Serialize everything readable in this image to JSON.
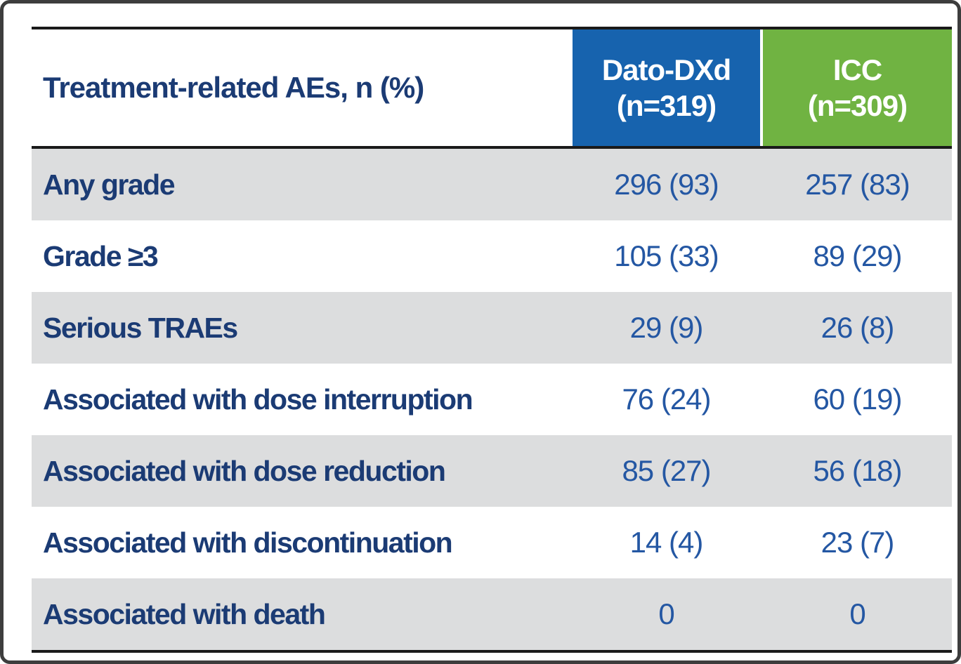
{
  "chart_data": {
    "type": "table",
    "title": "Treatment-related AEs, n (%)",
    "columns": [
      "Treatment-related AEs, n (%)",
      "Dato-DXd (n=319)",
      "ICC (n=309)"
    ],
    "rows": [
      [
        "Any grade",
        "296 (93)",
        "257 (83)"
      ],
      [
        "Grade ≥3",
        "105 (33)",
        "89 (29)"
      ],
      [
        "Serious TRAEs",
        "29 (9)",
        "26 (8)"
      ],
      [
        "Associated with dose interruption",
        "76 (24)",
        "60 (19)"
      ],
      [
        "Associated with dose reduction",
        "85 (27)",
        "56 (18)"
      ],
      [
        "Associated with discontinuation",
        "14 (4)",
        "23 (7)"
      ],
      [
        "Associated with death",
        "0",
        "0"
      ]
    ]
  },
  "table": {
    "header": {
      "row_label": "Treatment-related AEs, n (%)",
      "dato_line1": "Dato-DXd",
      "dato_line2": "(n=319)",
      "icc_line1": "ICC",
      "icc_line2": "(n=309)"
    },
    "rows": [
      {
        "label": "Any grade",
        "dato": "296 (93)",
        "icc": "257 (83)"
      },
      {
        "label": "Grade ≥3",
        "dato": "105 (33)",
        "icc": "89 (29)"
      },
      {
        "label": "Serious TRAEs",
        "dato": "29 (9)",
        "icc": "26 (8)"
      },
      {
        "label": "Associated with dose interruption",
        "dato": "76 (24)",
        "icc": "60 (19)"
      },
      {
        "label": "Associated with dose reduction",
        "dato": "85 (27)",
        "icc": "56 (18)"
      },
      {
        "label": "Associated with discontinuation",
        "dato": "14 (4)",
        "icc": "23 (7)"
      },
      {
        "label": "Associated with death",
        "dato": "0",
        "icc": "0"
      }
    ],
    "colors": {
      "navy_label": "#1b3b74",
      "value_blue": "#2457a3",
      "dato_header_bg": "#1763ae",
      "icc_header_bg": "#70b342",
      "shaded_row_bg": "#dcddde",
      "rule_black": "#1a1a1a"
    }
  }
}
